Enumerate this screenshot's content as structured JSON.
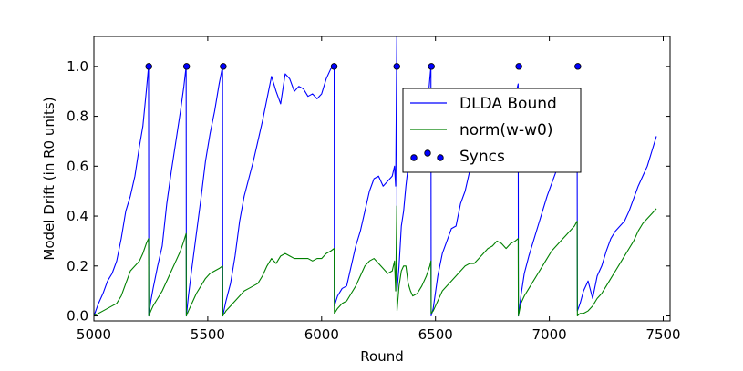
{
  "chart_data": {
    "type": "line",
    "title": "",
    "xlabel": "Round",
    "ylabel": "Model Drift (in R0 units)",
    "xlim": [
      5000,
      7530
    ],
    "ylim": [
      -0.02,
      1.12
    ],
    "xticks": [
      5000,
      5500,
      6000,
      6500,
      7000,
      7500
    ],
    "yticks": [
      0.0,
      0.2,
      0.4,
      0.6,
      0.8,
      1.0
    ],
    "xtick_labels": [
      "5000",
      "5500",
      "6000",
      "6500",
      "7000",
      "7500"
    ],
    "ytick_labels": [
      "0.0",
      "0.2",
      "0.4",
      "0.6",
      "0.8",
      "1.0"
    ],
    "grid": false,
    "legend_position": "center-right",
    "colors": {
      "dlda": "#0000ff",
      "norm": "#008000",
      "sync": "#0000ff"
    },
    "series": [
      {
        "name": "DLDA Bound",
        "style": "line",
        "color": "#0000ff",
        "x": [
          5000,
          5020,
          5040,
          5060,
          5080,
          5100,
          5120,
          5140,
          5160,
          5180,
          5200,
          5215,
          5230,
          5240,
          5241,
          5250,
          5260,
          5280,
          5300,
          5320,
          5340,
          5360,
          5380,
          5395,
          5405,
          5406,
          5415,
          5430,
          5450,
          5470,
          5490,
          5510,
          5530,
          5550,
          5565,
          5566,
          5580,
          5600,
          5620,
          5640,
          5660,
          5680,
          5700,
          5720,
          5740,
          5760,
          5780,
          5800,
          5820,
          5840,
          5860,
          5880,
          5900,
          5920,
          5940,
          5960,
          5980,
          6000,
          6020,
          6040,
          6055,
          6056,
          6070,
          6090,
          6110,
          6130,
          6150,
          6170,
          6190,
          6210,
          6230,
          6250,
          6270,
          6290,
          6310,
          6320,
          6325,
          6330,
          6331,
          6340,
          6350,
          6360,
          6370,
          6380,
          6390,
          6400,
          6420,
          6440,
          6460,
          6475,
          6480,
          6481,
          6490,
          6510,
          6530,
          6550,
          6570,
          6590,
          6610,
          6630,
          6650,
          6670,
          6690,
          6710,
          6730,
          6750,
          6770,
          6790,
          6810,
          6830,
          6850,
          6863,
          6864,
          6875,
          6890,
          6910,
          6930,
          6950,
          6970,
          6990,
          7010,
          7030,
          7050,
          7070,
          7090,
          7110,
          7122,
          7123,
          7135,
          7150,
          7170,
          7190,
          7210,
          7230,
          7250,
          7270,
          7290,
          7310,
          7330,
          7350,
          7370,
          7390,
          7410,
          7430,
          7450,
          7470
        ],
        "y": [
          0.0,
          0.05,
          0.09,
          0.14,
          0.17,
          0.22,
          0.31,
          0.42,
          0.48,
          0.56,
          0.68,
          0.76,
          0.9,
          1.0,
          0.0,
          0.06,
          0.11,
          0.2,
          0.28,
          0.45,
          0.58,
          0.7,
          0.82,
          0.92,
          1.0,
          0.0,
          0.08,
          0.19,
          0.33,
          0.47,
          0.62,
          0.73,
          0.82,
          0.93,
          1.0,
          0.0,
          0.06,
          0.13,
          0.24,
          0.38,
          0.48,
          0.55,
          0.62,
          0.7,
          0.78,
          0.87,
          0.96,
          0.9,
          0.85,
          0.97,
          0.95,
          0.9,
          0.92,
          0.91,
          0.88,
          0.89,
          0.87,
          0.89,
          0.95,
          0.99,
          1.0,
          0.04,
          0.08,
          0.11,
          0.12,
          0.2,
          0.28,
          0.34,
          0.42,
          0.5,
          0.55,
          0.56,
          0.52,
          0.54,
          0.56,
          0.6,
          0.52,
          1.12,
          0.1,
          0.2,
          0.36,
          0.42,
          0.52,
          0.6,
          0.66,
          0.72,
          0.72,
          0.75,
          0.78,
          0.95,
          1.0,
          0.0,
          0.03,
          0.16,
          0.25,
          0.3,
          0.35,
          0.36,
          0.45,
          0.5,
          0.58,
          0.6,
          0.69,
          0.72,
          0.78,
          0.78,
          0.8,
          0.83,
          0.8,
          0.86,
          0.88,
          0.93,
          0.0,
          0.08,
          0.17,
          0.24,
          0.3,
          0.36,
          0.42,
          0.48,
          0.53,
          0.58,
          0.61,
          0.63,
          0.64,
          0.67,
          0.72,
          0.02,
          0.05,
          0.1,
          0.14,
          0.07,
          0.16,
          0.2,
          0.26,
          0.31,
          0.34,
          0.36,
          0.38,
          0.42,
          0.47,
          0.52,
          0.56,
          0.6,
          0.66,
          0.72
        ]
      },
      {
        "name": "norm(w-w0)",
        "style": "line",
        "color": "#008000",
        "x": [
          5000,
          5020,
          5040,
          5060,
          5080,
          5100,
          5120,
          5140,
          5160,
          5180,
          5200,
          5215,
          5230,
          5240,
          5241,
          5250,
          5260,
          5280,
          5300,
          5320,
          5340,
          5360,
          5380,
          5395,
          5405,
          5406,
          5415,
          5430,
          5450,
          5470,
          5490,
          5510,
          5530,
          5550,
          5565,
          5566,
          5580,
          5600,
          5620,
          5640,
          5660,
          5680,
          5700,
          5720,
          5740,
          5760,
          5780,
          5800,
          5820,
          5840,
          5860,
          5880,
          5900,
          5920,
          5940,
          5960,
          5980,
          6000,
          6020,
          6040,
          6055,
          6056,
          6070,
          6090,
          6110,
          6130,
          6150,
          6170,
          6190,
          6210,
          6230,
          6250,
          6270,
          6290,
          6310,
          6320,
          6325,
          6330,
          6331,
          6340,
          6350,
          6360,
          6370,
          6380,
          6390,
          6400,
          6420,
          6440,
          6460,
          6475,
          6480,
          6481,
          6490,
          6510,
          6530,
          6550,
          6570,
          6590,
          6610,
          6630,
          6650,
          6670,
          6690,
          6710,
          6730,
          6750,
          6770,
          6790,
          6810,
          6830,
          6850,
          6863,
          6864,
          6875,
          6890,
          6910,
          6930,
          6950,
          6970,
          6990,
          7010,
          7030,
          7050,
          7070,
          7090,
          7110,
          7122,
          7123,
          7135,
          7150,
          7170,
          7190,
          7210,
          7230,
          7250,
          7270,
          7290,
          7310,
          7330,
          7350,
          7370,
          7390,
          7410,
          7430,
          7450,
          7470
        ],
        "y": [
          0.0,
          0.01,
          0.02,
          0.03,
          0.04,
          0.05,
          0.08,
          0.13,
          0.18,
          0.2,
          0.22,
          0.25,
          0.29,
          0.31,
          0.0,
          0.02,
          0.04,
          0.07,
          0.1,
          0.14,
          0.18,
          0.22,
          0.26,
          0.3,
          0.33,
          0.0,
          0.02,
          0.05,
          0.09,
          0.12,
          0.15,
          0.17,
          0.18,
          0.19,
          0.2,
          0.0,
          0.02,
          0.04,
          0.06,
          0.08,
          0.1,
          0.11,
          0.12,
          0.13,
          0.16,
          0.2,
          0.23,
          0.21,
          0.24,
          0.25,
          0.24,
          0.23,
          0.23,
          0.23,
          0.23,
          0.22,
          0.23,
          0.23,
          0.25,
          0.26,
          0.27,
          0.01,
          0.03,
          0.05,
          0.06,
          0.09,
          0.12,
          0.16,
          0.2,
          0.22,
          0.23,
          0.21,
          0.19,
          0.17,
          0.18,
          0.22,
          0.1,
          0.44,
          0.02,
          0.12,
          0.18,
          0.2,
          0.2,
          0.13,
          0.1,
          0.08,
          0.09,
          0.12,
          0.16,
          0.2,
          0.22,
          0.01,
          0.02,
          0.06,
          0.1,
          0.12,
          0.14,
          0.16,
          0.18,
          0.2,
          0.21,
          0.21,
          0.23,
          0.25,
          0.27,
          0.28,
          0.3,
          0.29,
          0.27,
          0.29,
          0.3,
          0.31,
          0.0,
          0.05,
          0.08,
          0.11,
          0.14,
          0.17,
          0.2,
          0.23,
          0.26,
          0.28,
          0.3,
          0.32,
          0.34,
          0.36,
          0.38,
          0.0,
          0.01,
          0.01,
          0.02,
          0.04,
          0.07,
          0.09,
          0.12,
          0.15,
          0.18,
          0.21,
          0.24,
          0.27,
          0.3,
          0.34,
          0.37,
          0.39,
          0.41,
          0.43
        ]
      },
      {
        "name": "Syncs",
        "style": "markers",
        "color": "#0000ff",
        "x": [
          5241,
          5407,
          5568,
          6055,
          6330,
          6482,
          6866,
          7125
        ],
        "y": [
          1.0,
          1.0,
          1.0,
          1.0,
          1.0,
          1.0,
          1.0,
          1.0
        ]
      }
    ]
  }
}
